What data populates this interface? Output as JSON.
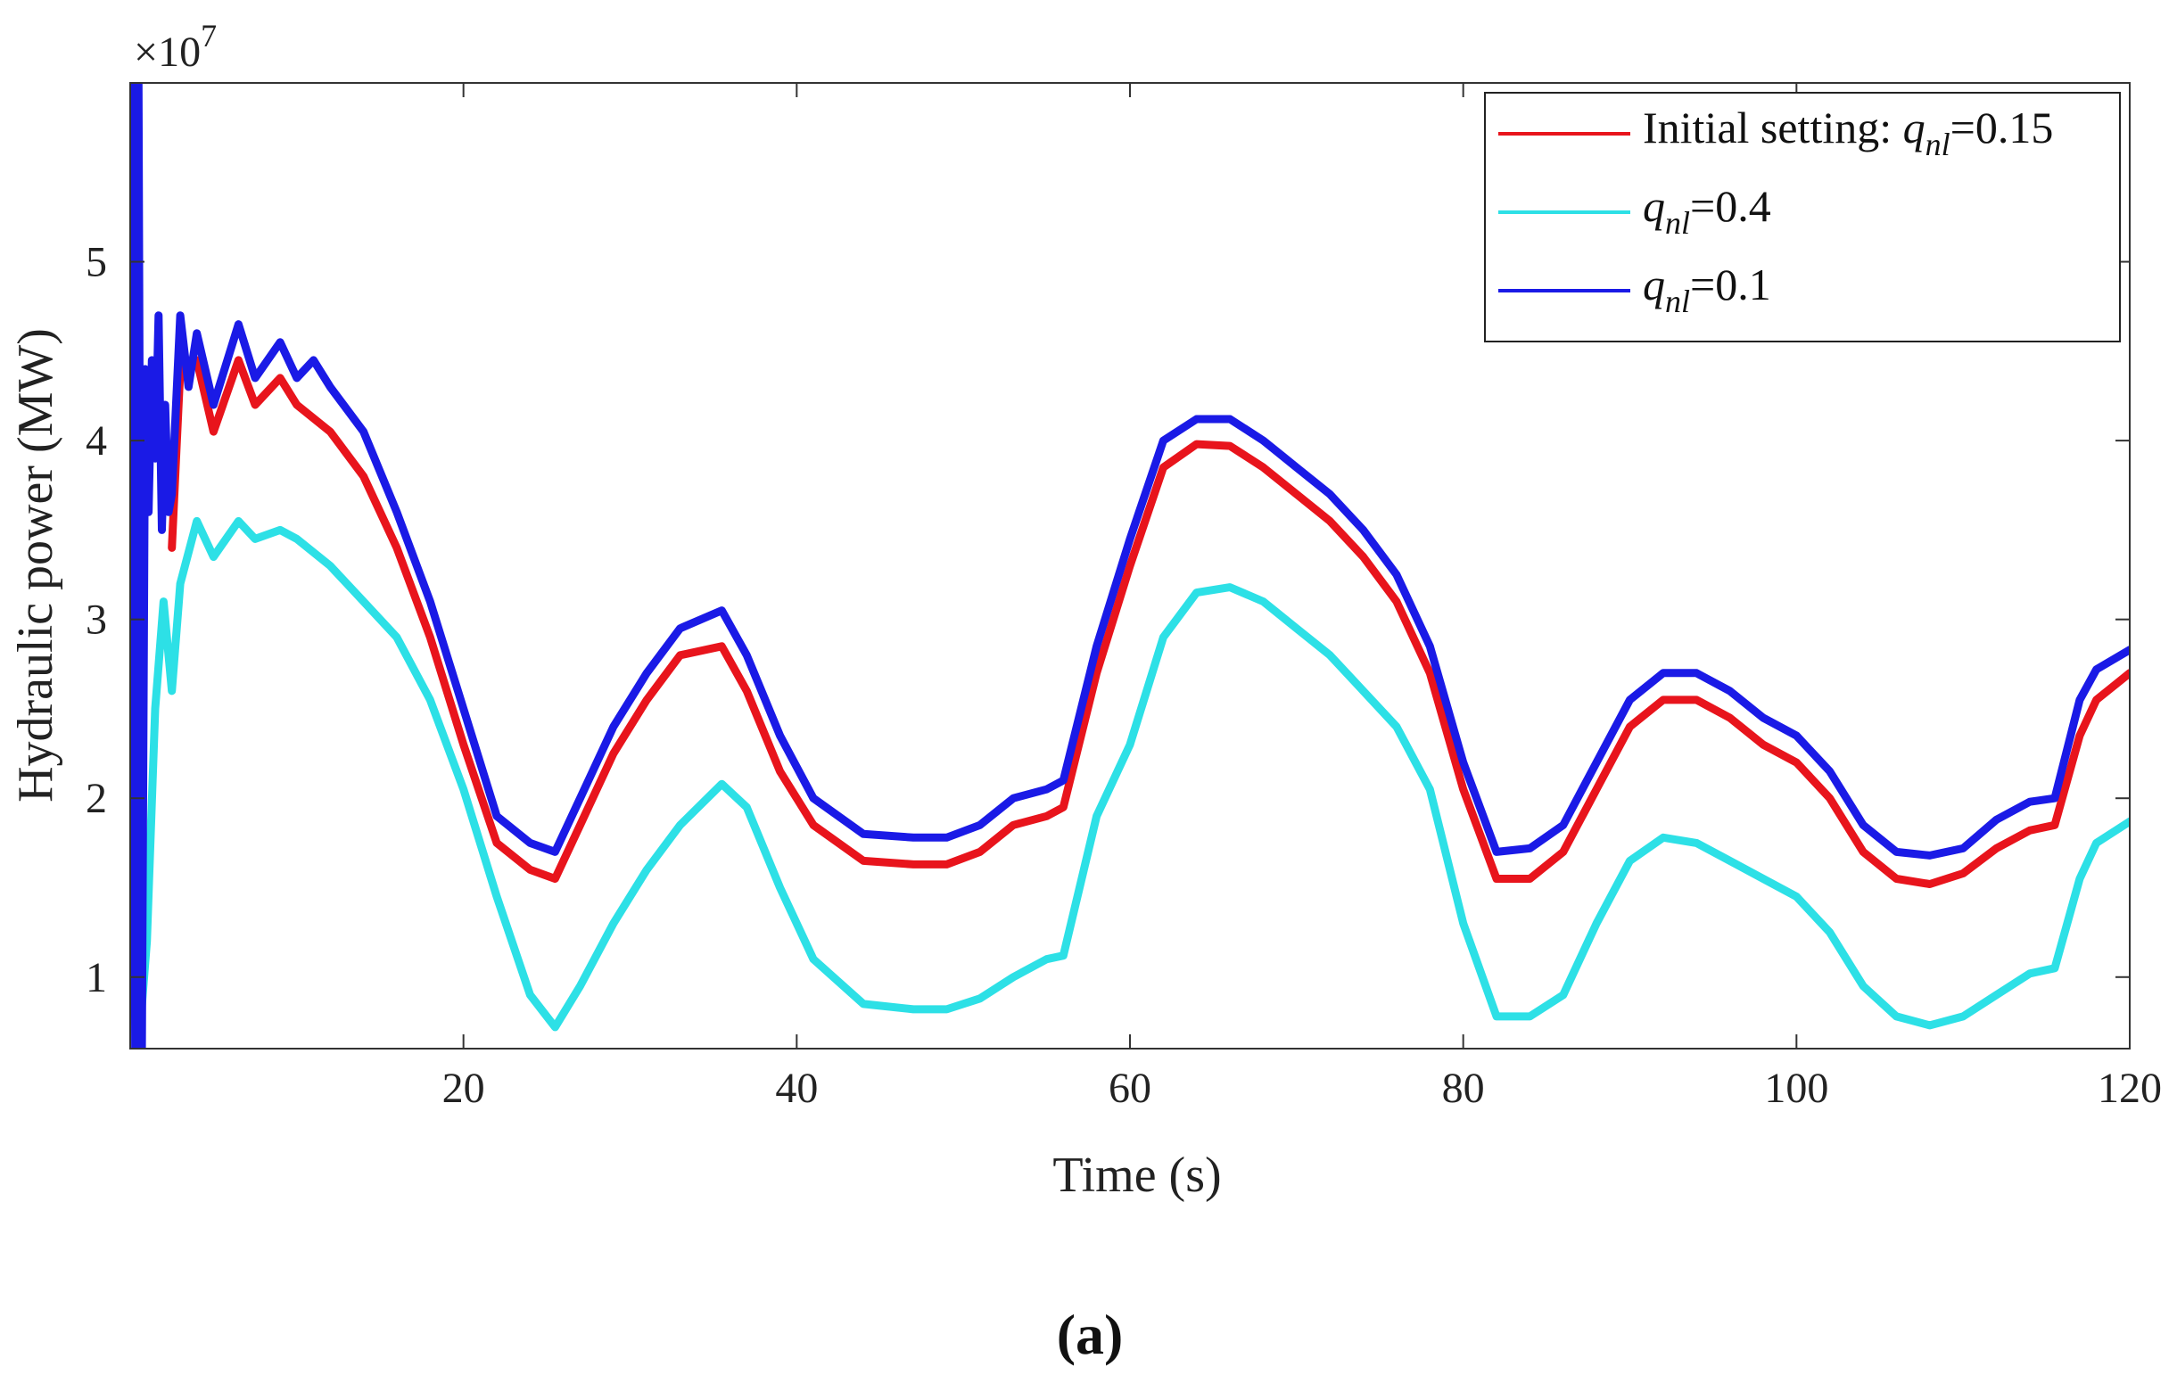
{
  "chart_data": {
    "type": "line",
    "title": "",
    "subtitle_label": "(a)",
    "xlabel": "Time (s)",
    "ylabel": "Hydraulic power (MW)",
    "exponent_label": "×10",
    "exponent_power": "7",
    "xlim": [
      0,
      120
    ],
    "ylim": [
      0.6,
      6.0
    ],
    "xticks": [
      20,
      40,
      60,
      80,
      100,
      120
    ],
    "yticks": [
      1,
      2,
      3,
      4,
      5
    ],
    "xtick_labels": [
      "20",
      "40",
      "60",
      "80",
      "100",
      "120"
    ],
    "ytick_labels": [
      "1",
      "2",
      "3",
      "4",
      "5"
    ],
    "grid": false,
    "legend_position": "top-right",
    "series": [
      {
        "name": "Initial setting: q_nl=0.15",
        "legend_prefix": "Initial setting: ",
        "legend_var": "q",
        "legend_sub": "nl",
        "legend_value": "=0.15",
        "color": "#e8141c",
        "x": [
          2.5,
          3.0,
          4.0,
          5.0,
          6.5,
          7.5,
          9.0,
          10.0,
          12.0,
          14.0,
          16.0,
          18.0,
          20.0,
          22.0,
          24.0,
          25.5,
          27.0,
          29.0,
          31.0,
          33.0,
          35.5,
          37.0,
          39.0,
          41.0,
          44.0,
          47.0,
          49.0,
          51.0,
          53.0,
          55.0,
          56.0,
          58.0,
          60.0,
          62.0,
          64.0,
          66.0,
          68.0,
          70.0,
          72.0,
          74.0,
          76.0,
          78.0,
          80.0,
          82.0,
          84.0,
          86.0,
          88.0,
          90.0,
          92.0,
          94.0,
          96.0,
          98.0,
          100.0,
          102.0,
          104.0,
          106.0,
          108.0,
          110.0,
          112.0,
          114.0,
          115.5,
          117.0,
          118.0,
          120.0
        ],
        "y": [
          3.4,
          4.4,
          4.45,
          4.05,
          4.45,
          4.2,
          4.35,
          4.2,
          4.05,
          3.8,
          3.4,
          2.9,
          2.3,
          1.75,
          1.6,
          1.55,
          1.85,
          2.25,
          2.55,
          2.8,
          2.85,
          2.6,
          2.15,
          1.85,
          1.65,
          1.63,
          1.63,
          1.7,
          1.85,
          1.9,
          1.95,
          2.7,
          3.3,
          3.85,
          3.98,
          3.97,
          3.85,
          3.7,
          3.55,
          3.35,
          3.1,
          2.7,
          2.05,
          1.55,
          1.55,
          1.7,
          2.05,
          2.4,
          2.55,
          2.55,
          2.45,
          2.3,
          2.2,
          2.0,
          1.7,
          1.55,
          1.52,
          1.58,
          1.72,
          1.82,
          1.85,
          2.35,
          2.55,
          2.7
        ]
      },
      {
        "name": "q_nl=0.4",
        "legend_prefix": "",
        "legend_var": "q",
        "legend_sub": "nl",
        "legend_value": "=0.4",
        "color": "#2de0e6",
        "x": [
          0.5,
          1.0,
          1.5,
          2.0,
          2.5,
          3.0,
          4.0,
          5.0,
          6.5,
          7.5,
          9.0,
          10.0,
          12.0,
          14.0,
          16.0,
          18.0,
          20.0,
          22.0,
          24.0,
          25.5,
          27.0,
          29.0,
          31.0,
          33.0,
          35.5,
          37.0,
          39.0,
          41.0,
          44.0,
          47.0,
          49.0,
          51.0,
          53.0,
          55.0,
          56.0,
          58.0,
          60.0,
          62.0,
          64.0,
          66.0,
          68.0,
          70.0,
          72.0,
          74.0,
          76.0,
          78.0,
          80.0,
          82.0,
          84.0,
          86.0,
          88.0,
          90.0,
          92.0,
          94.0,
          96.0,
          98.0,
          100.0,
          102.0,
          104.0,
          106.0,
          108.0,
          110.0,
          112.0,
          114.0,
          115.5,
          117.0,
          118.0,
          120.0
        ],
        "y": [
          0.6,
          1.2,
          2.5,
          3.1,
          2.6,
          3.2,
          3.55,
          3.35,
          3.55,
          3.45,
          3.5,
          3.45,
          3.3,
          3.1,
          2.9,
          2.55,
          2.05,
          1.45,
          0.9,
          0.72,
          0.95,
          1.3,
          1.6,
          1.85,
          2.08,
          1.95,
          1.5,
          1.1,
          0.85,
          0.82,
          0.82,
          0.88,
          1.0,
          1.1,
          1.12,
          1.9,
          2.3,
          2.9,
          3.15,
          3.18,
          3.1,
          2.95,
          2.8,
          2.6,
          2.4,
          2.05,
          1.3,
          0.78,
          0.78,
          0.9,
          1.3,
          1.65,
          1.78,
          1.75,
          1.65,
          1.55,
          1.45,
          1.25,
          0.95,
          0.78,
          0.73,
          0.78,
          0.9,
          1.02,
          1.05,
          1.55,
          1.75,
          1.87
        ]
      },
      {
        "name": "q_nl=0.1",
        "legend_prefix": "",
        "legend_var": "q",
        "legend_sub": "nl",
        "legend_value": "=0.1",
        "color": "#1a1ae6",
        "x": [
          0.15,
          0.3,
          0.5,
          0.7,
          0.9,
          1.1,
          1.3,
          1.5,
          1.7,
          1.9,
          2.1,
          2.3,
          2.5,
          3.0,
          3.5,
          4.0,
          5.0,
          6.5,
          7.5,
          9.0,
          10.0,
          11.0,
          12.0,
          14.0,
          16.0,
          18.0,
          20.0,
          22.0,
          24.0,
          25.5,
          27.0,
          29.0,
          31.0,
          33.0,
          35.5,
          37.0,
          39.0,
          41.0,
          44.0,
          47.0,
          49.0,
          51.0,
          53.0,
          55.0,
          56.0,
          58.0,
          60.0,
          62.0,
          64.0,
          66.0,
          68.0,
          70.0,
          72.0,
          74.0,
          76.0,
          78.0,
          80.0,
          82.0,
          84.0,
          86.0,
          88.0,
          90.0,
          92.0,
          94.0,
          96.0,
          98.0,
          100.0,
          102.0,
          104.0,
          106.0,
          108.0,
          110.0,
          112.0,
          114.0,
          115.5,
          117.0,
          118.0,
          120.0
        ],
        "y": [
          6.0,
          0.6,
          6.0,
          0.6,
          4.4,
          3.6,
          4.45,
          3.9,
          4.7,
          3.5,
          4.2,
          3.6,
          3.7,
          4.7,
          4.3,
          4.6,
          4.2,
          4.65,
          4.35,
          4.55,
          4.35,
          4.45,
          4.3,
          4.05,
          3.6,
          3.1,
          2.5,
          1.9,
          1.75,
          1.7,
          2.0,
          2.4,
          2.7,
          2.95,
          3.05,
          2.8,
          2.35,
          2.0,
          1.8,
          1.78,
          1.78,
          1.85,
          2.0,
          2.05,
          2.1,
          2.85,
          3.45,
          4.0,
          4.12,
          4.12,
          4.0,
          3.85,
          3.7,
          3.5,
          3.25,
          2.85,
          2.2,
          1.7,
          1.72,
          1.85,
          2.2,
          2.55,
          2.7,
          2.7,
          2.6,
          2.45,
          2.35,
          2.15,
          1.85,
          1.7,
          1.68,
          1.72,
          1.88,
          1.98,
          2.0,
          2.55,
          2.72,
          2.83
        ]
      }
    ]
  }
}
